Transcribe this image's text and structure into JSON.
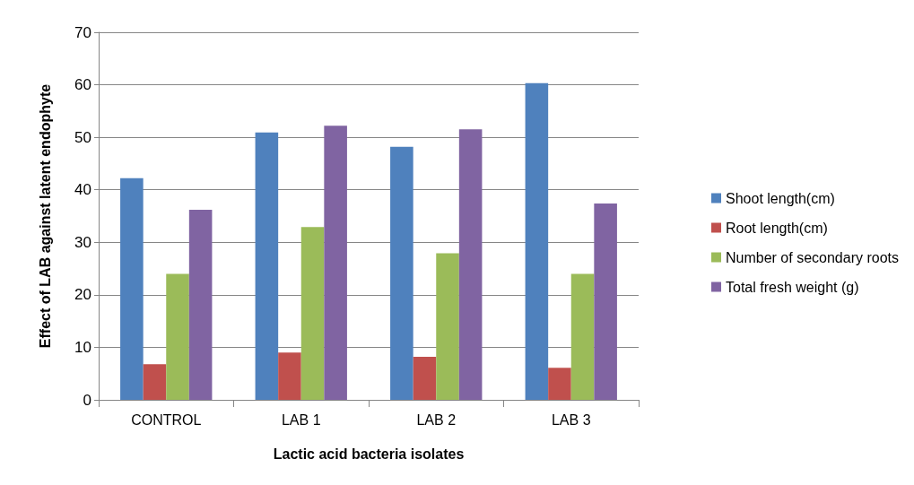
{
  "chart_data": {
    "type": "bar",
    "xlabel": "Lactic acid bacteria isolates",
    "ylabel": "Effect of LAB against latent endophyte",
    "categories": [
      "CONTROL",
      "LAB 1",
      "LAB 2",
      "LAB 3"
    ],
    "series": [
      {
        "name": "Shoot length(cm)",
        "color": "#4f81bd",
        "values": [
          42.2,
          50.9,
          48.2,
          60.3
        ]
      },
      {
        "name": "Root length(cm)",
        "color": "#c0504d",
        "values": [
          6.8,
          9,
          8.2,
          6.1
        ]
      },
      {
        "name": "Number of secondary roots",
        "color": "#9bbb59",
        "values": [
          24,
          32.9,
          27.9,
          24
        ]
      },
      {
        "name": "Total fresh weight (g)",
        "color": "#8064a2",
        "values": [
          36.2,
          52.2,
          51.5,
          37.4
        ]
      }
    ],
    "ylim": [
      0,
      70
    ],
    "yticks": [
      0,
      10,
      20,
      30,
      40,
      50,
      60,
      70
    ],
    "grid": "y",
    "legend": "right"
  }
}
